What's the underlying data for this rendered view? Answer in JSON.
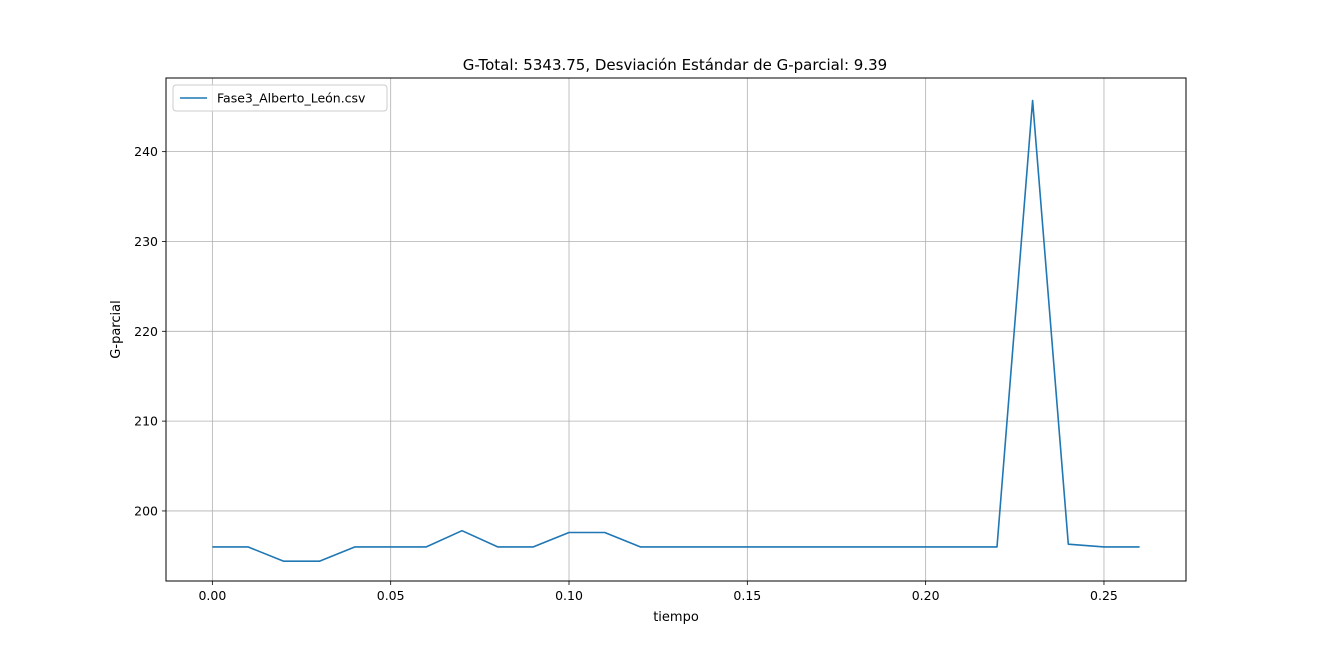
{
  "chart_data": {
    "type": "line",
    "title": "G-Total: 5343.75, Desviación Estándar de G-parcial: 9.39",
    "xlabel": "tiempo",
    "ylabel": "G-parcial",
    "xlim": [
      -0.013,
      0.273
    ],
    "ylim": [
      192.2,
      248.2
    ],
    "xticks": [
      0.0,
      0.05,
      0.1,
      0.15,
      0.2,
      0.25
    ],
    "xtick_labels": [
      "0.00",
      "0.05",
      "0.10",
      "0.15",
      "0.20",
      "0.25"
    ],
    "yticks": [
      200,
      210,
      220,
      230,
      240
    ],
    "ytick_labels": [
      "200",
      "210",
      "220",
      "230",
      "240"
    ],
    "grid": true,
    "legend_position": "top-left",
    "series": [
      {
        "name": "Fase3_Alberto_León.csv",
        "color": "#1f77b4",
        "x": [
          0.0,
          0.01,
          0.02,
          0.03,
          0.04,
          0.05,
          0.06,
          0.07,
          0.08,
          0.09,
          0.1,
          0.11,
          0.12,
          0.13,
          0.14,
          0.15,
          0.16,
          0.17,
          0.18,
          0.19,
          0.2,
          0.21,
          0.22,
          0.23,
          0.24,
          0.25,
          0.26
        ],
        "y": [
          196.0,
          196.0,
          194.4,
          194.4,
          196.0,
          196.0,
          196.0,
          197.8,
          196.0,
          196.0,
          197.6,
          197.6,
          196.0,
          196.0,
          196.0,
          196.0,
          196.0,
          196.0,
          196.0,
          196.0,
          196.0,
          196.0,
          196.0,
          245.7,
          196.3,
          196.0,
          196.0
        ]
      }
    ]
  }
}
